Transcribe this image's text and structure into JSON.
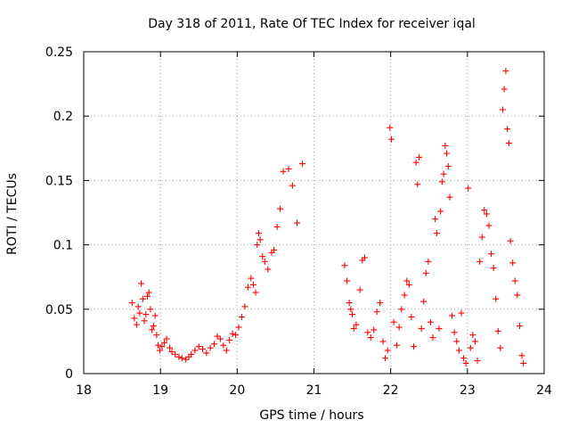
{
  "chart_data": {
    "type": "scatter",
    "title": "Day 318 of 2011, Rate Of TEC Index for receiver iqal",
    "xlabel": "GPS time / hours",
    "ylabel": "ROTI / TECUs",
    "xlim": [
      18,
      24
    ],
    "ylim": [
      0,
      0.25
    ],
    "xticks": [
      "18",
      "19",
      "20",
      "21",
      "22",
      "23",
      "24"
    ],
    "yticks": [
      "0",
      "0.05",
      "0.1",
      "0.15",
      "0.2",
      "0.25"
    ],
    "grid": true,
    "marker": "plus",
    "marker_color": "#ff0000",
    "series": [
      {
        "name": "ROTI",
        "points": [
          [
            18.63,
            0.055
          ],
          [
            18.66,
            0.043
          ],
          [
            18.69,
            0.038
          ],
          [
            18.71,
            0.052
          ],
          [
            18.73,
            0.047
          ],
          [
            18.75,
            0.07
          ],
          [
            18.77,
            0.058
          ],
          [
            18.79,
            0.041
          ],
          [
            18.81,
            0.046
          ],
          [
            18.83,
            0.06
          ],
          [
            18.85,
            0.063
          ],
          [
            18.87,
            0.05
          ],
          [
            18.89,
            0.034
          ],
          [
            18.91,
            0.037
          ],
          [
            18.93,
            0.045
          ],
          [
            18.95,
            0.03
          ],
          [
            18.97,
            0.022
          ],
          [
            18.99,
            0.018
          ],
          [
            19.02,
            0.021
          ],
          [
            19.05,
            0.024
          ],
          [
            19.08,
            0.027
          ],
          [
            19.12,
            0.02
          ],
          [
            19.15,
            0.017
          ],
          [
            19.19,
            0.015
          ],
          [
            19.24,
            0.013
          ],
          [
            19.28,
            0.012
          ],
          [
            19.33,
            0.011
          ],
          [
            19.37,
            0.013
          ],
          [
            19.4,
            0.015
          ],
          [
            19.45,
            0.018
          ],
          [
            19.5,
            0.021
          ],
          [
            19.55,
            0.019
          ],
          [
            19.6,
            0.016
          ],
          [
            19.65,
            0.02
          ],
          [
            19.7,
            0.023
          ],
          [
            19.74,
            0.029
          ],
          [
            19.78,
            0.027
          ],
          [
            19.82,
            0.022
          ],
          [
            19.86,
            0.018
          ],
          [
            19.9,
            0.026
          ],
          [
            19.94,
            0.031
          ],
          [
            19.98,
            0.03
          ],
          [
            20.02,
            0.036
          ],
          [
            20.06,
            0.044
          ],
          [
            20.1,
            0.052
          ],
          [
            20.14,
            0.067
          ],
          [
            20.18,
            0.074
          ],
          [
            20.21,
            0.069
          ],
          [
            20.24,
            0.063
          ],
          [
            20.26,
            0.1
          ],
          [
            20.28,
            0.109
          ],
          [
            20.3,
            0.104
          ],
          [
            20.33,
            0.091
          ],
          [
            20.36,
            0.087
          ],
          [
            20.4,
            0.081
          ],
          [
            20.45,
            0.094
          ],
          [
            20.48,
            0.096
          ],
          [
            20.52,
            0.114
          ],
          [
            20.56,
            0.128
          ],
          [
            20.6,
            0.157
          ],
          [
            20.67,
            0.159
          ],
          [
            20.72,
            0.146
          ],
          [
            20.78,
            0.117
          ],
          [
            20.85,
            0.163
          ],
          [
            21.4,
            0.084
          ],
          [
            21.43,
            0.072
          ],
          [
            21.46,
            0.055
          ],
          [
            21.48,
            0.05
          ],
          [
            21.5,
            0.046
          ],
          [
            21.52,
            0.035
          ],
          [
            21.55,
            0.038
          ],
          [
            21.6,
            0.065
          ],
          [
            21.63,
            0.088
          ],
          [
            21.66,
            0.09
          ],
          [
            21.7,
            0.032
          ],
          [
            21.74,
            0.028
          ],
          [
            21.78,
            0.034
          ],
          [
            21.82,
            0.048
          ],
          [
            21.86,
            0.055
          ],
          [
            21.9,
            0.025
          ],
          [
            21.93,
            0.012
          ],
          [
            21.96,
            0.018
          ],
          [
            21.99,
            0.191
          ],
          [
            22.01,
            0.182
          ],
          [
            22.04,
            0.04
          ],
          [
            22.08,
            0.022
          ],
          [
            22.11,
            0.036
          ],
          [
            22.14,
            0.05
          ],
          [
            22.18,
            0.061
          ],
          [
            22.21,
            0.072
          ],
          [
            22.24,
            0.069
          ],
          [
            22.27,
            0.044
          ],
          [
            22.3,
            0.021
          ],
          [
            22.33,
            0.164
          ],
          [
            22.35,
            0.147
          ],
          [
            22.37,
            0.168
          ],
          [
            22.4,
            0.035
          ],
          [
            22.43,
            0.056
          ],
          [
            22.46,
            0.078
          ],
          [
            22.49,
            0.087
          ],
          [
            22.52,
            0.04
          ],
          [
            22.55,
            0.028
          ],
          [
            22.58,
            0.12
          ],
          [
            22.6,
            0.109
          ],
          [
            22.63,
            0.035
          ],
          [
            22.65,
            0.126
          ],
          [
            22.67,
            0.149
          ],
          [
            22.69,
            0.155
          ],
          [
            22.71,
            0.177
          ],
          [
            22.73,
            0.171
          ],
          [
            22.75,
            0.161
          ],
          [
            22.77,
            0.137
          ],
          [
            22.8,
            0.045
          ],
          [
            22.83,
            0.032
          ],
          [
            22.86,
            0.025
          ],
          [
            22.89,
            0.018
          ],
          [
            22.92,
            0.047
          ],
          [
            22.95,
            0.012
          ],
          [
            22.98,
            0.008
          ],
          [
            23.01,
            0.144
          ],
          [
            23.04,
            0.02
          ],
          [
            23.07,
            0.03
          ],
          [
            23.1,
            0.025
          ],
          [
            23.13,
            0.01
          ],
          [
            23.16,
            0.087
          ],
          [
            23.19,
            0.106
          ],
          [
            23.22,
            0.127
          ],
          [
            23.25,
            0.124
          ],
          [
            23.28,
            0.115
          ],
          [
            23.31,
            0.093
          ],
          [
            23.34,
            0.082
          ],
          [
            23.37,
            0.058
          ],
          [
            23.4,
            0.033
          ],
          [
            23.43,
            0.02
          ],
          [
            23.46,
            0.205
          ],
          [
            23.48,
            0.221
          ],
          [
            23.5,
            0.235
          ],
          [
            23.52,
            0.19
          ],
          [
            23.54,
            0.179
          ],
          [
            23.56,
            0.103
          ],
          [
            23.59,
            0.086
          ],
          [
            23.62,
            0.072
          ],
          [
            23.65,
            0.061
          ],
          [
            23.68,
            0.037
          ],
          [
            23.71,
            0.014
          ],
          [
            23.73,
            0.008
          ]
        ]
      }
    ]
  }
}
